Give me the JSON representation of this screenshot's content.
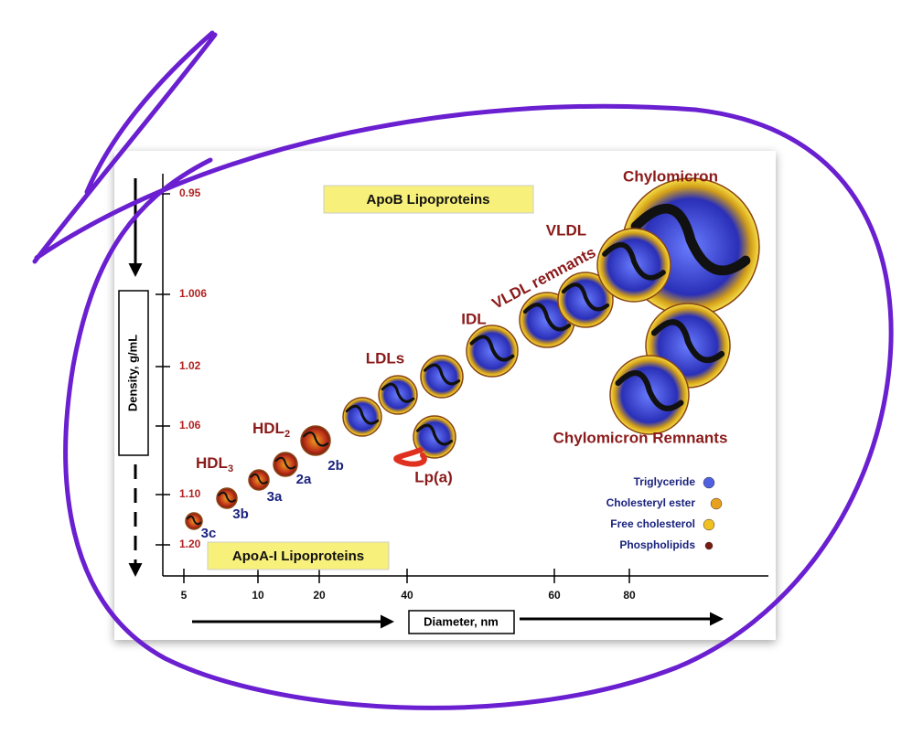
{
  "figure": {
    "banners": {
      "apob": "ApoB Lipoproteins",
      "apoa": "ApoA-I Lipoproteins"
    },
    "y_axis": {
      "title": "Density, g/mL",
      "ticks": [
        "0.95",
        "1.006",
        "1.02",
        "1.06",
        "1.10",
        "1.20"
      ]
    },
    "x_axis": {
      "title": "Diameter, nm",
      "ticks": [
        "5",
        "10",
        "20",
        "40",
        "60",
        "80"
      ]
    },
    "labels": {
      "chylomicron": "Chylomicron",
      "vldl": "VLDL",
      "vldl_remnants": "VLDL remnants",
      "idl": "IDL",
      "ldl": "LDLs",
      "lpa": "Lp(a)",
      "chylo_remnants": "Chylomicron Remnants"
    },
    "hdl2": {
      "text": "HDL",
      "sub": "2"
    },
    "hdl3": {
      "text": "HDL",
      "sub": "3"
    },
    "subclasses": [
      "3c",
      "3b",
      "3a",
      "2a",
      "2b"
    ],
    "legend": [
      "Triglyceride",
      "Cholesteryl ester",
      "Free cholesterol",
      "Phospholipids"
    ]
  }
}
